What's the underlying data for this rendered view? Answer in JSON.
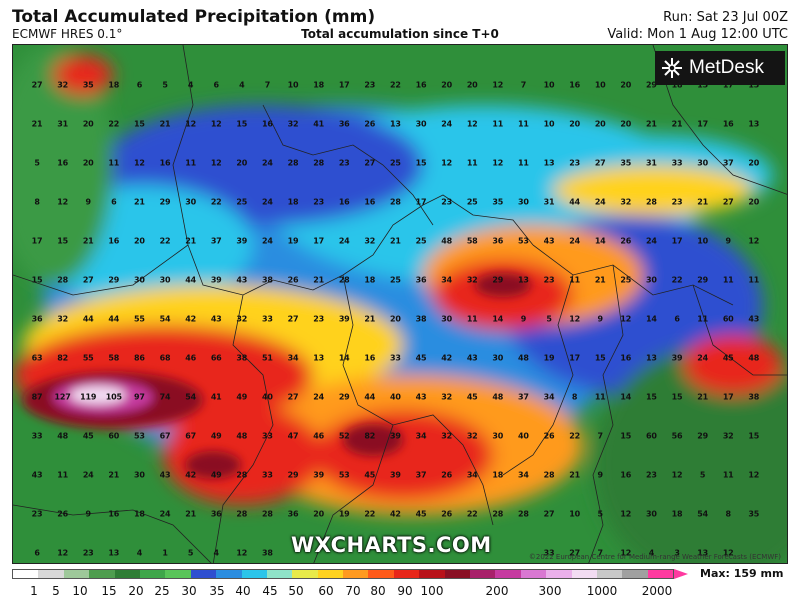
{
  "header": {
    "title": "Total Accumulated Precipitation (mm)",
    "model": "ECMWF HRES 0.1°",
    "subtitle": "Total accumulation since T+0",
    "run": "Run: Sat 23 Jul 00Z",
    "valid": "Valid: Mon 1 Aug 12:00 UTC"
  },
  "logo": {
    "name": "MetDesk"
  },
  "watermark": "WXCHARTS.COM",
  "copyright": "©2022 European Centre for Medium-range Weather Forecasts (ECMWF)",
  "legend": {
    "max_label": "Max: 159 mm",
    "tick_labels": [
      "1",
      "5",
      "10",
      "15",
      "20",
      "25",
      "30",
      "35",
      "40",
      "45",
      "50",
      "60",
      "70",
      "80",
      "90",
      "100",
      "200",
      "300",
      "1000",
      "2000"
    ],
    "colors": [
      "#ffffff",
      "#d8d8d8",
      "#9ec89a",
      "#4f9d4f",
      "#2f7d35",
      "#3fa64a",
      "#59c459",
      "#2f4fd0",
      "#2b8de0",
      "#2cc5ea",
      "#8fe3c8",
      "#e8ea4a",
      "#ffd21f",
      "#ff9a1f",
      "#ff5a1a",
      "#e8261a",
      "#b8121a",
      "#8a1024",
      "#a8206a",
      "#c63aa0",
      "#d978d2",
      "#eab0ea",
      "#f2dcf2",
      "#c8c8c8",
      "#a0a0a0",
      "#ff3aa0"
    ]
  },
  "values": [
    [
      "27",
      "32",
      "35",
      "18",
      "6",
      "5",
      "4",
      "6",
      "4",
      "7",
      "10",
      "18",
      "17",
      "23",
      "22",
      "16",
      "20",
      "20",
      "12",
      "7",
      "10",
      "16",
      "10",
      "20",
      "29",
      "18",
      "13",
      "17",
      "13"
    ],
    [
      "21",
      "31",
      "20",
      "22",
      "15",
      "21",
      "12",
      "12",
      "15",
      "16",
      "32",
      "41",
      "36",
      "26",
      "13",
      "30",
      "24",
      "12",
      "11",
      "11",
      "10",
      "20",
      "20",
      "20",
      "21",
      "21",
      "17",
      "16",
      "13"
    ],
    [
      "5",
      "16",
      "20",
      "11",
      "12",
      "16",
      "11",
      "12",
      "20",
      "24",
      "28",
      "28",
      "23",
      "27",
      "25",
      "15",
      "12",
      "11",
      "12",
      "11",
      "13",
      "23",
      "27",
      "35",
      "31",
      "33",
      "30",
      "37",
      "20"
    ],
    [
      "8",
      "12",
      "9",
      "6",
      "21",
      "29",
      "30",
      "22",
      "25",
      "24",
      "18",
      "23",
      "16",
      "16",
      "28",
      "17",
      "23",
      "25",
      "35",
      "30",
      "31",
      "44",
      "24",
      "32",
      "28",
      "23",
      "21",
      "27",
      "20"
    ],
    [
      "17",
      "15",
      "21",
      "16",
      "20",
      "22",
      "21",
      "37",
      "39",
      "24",
      "19",
      "17",
      "24",
      "32",
      "21",
      "25",
      "48",
      "58",
      "36",
      "53",
      "43",
      "24",
      "14",
      "26",
      "24",
      "17",
      "10",
      "9",
      "12"
    ],
    [
      "15",
      "28",
      "27",
      "29",
      "30",
      "30",
      "44",
      "39",
      "43",
      "38",
      "26",
      "21",
      "28",
      "18",
      "25",
      "36",
      "34",
      "32",
      "29",
      "13",
      "23",
      "11",
      "21",
      "25",
      "30",
      "22",
      "29",
      "11",
      "11"
    ],
    [
      "36",
      "32",
      "44",
      "44",
      "55",
      "54",
      "42",
      "43",
      "32",
      "33",
      "27",
      "23",
      "39",
      "21",
      "20",
      "38",
      "30",
      "11",
      "14",
      "9",
      "5",
      "12",
      "9",
      "12",
      "14",
      "6",
      "11",
      "60",
      "43"
    ],
    [
      "63",
      "82",
      "55",
      "58",
      "86",
      "68",
      "46",
      "66",
      "38",
      "51",
      "34",
      "13",
      "14",
      "16",
      "33",
      "45",
      "42",
      "43",
      "30",
      "48",
      "19",
      "17",
      "15",
      "16",
      "13",
      "39",
      "24",
      "45",
      "48"
    ],
    [
      "87",
      "127",
      "119",
      "105",
      "97",
      "74",
      "54",
      "41",
      "49",
      "40",
      "27",
      "24",
      "29",
      "44",
      "40",
      "43",
      "32",
      "45",
      "48",
      "37",
      "34",
      "8",
      "11",
      "14",
      "15",
      "15",
      "21",
      "17",
      "38"
    ],
    [
      "33",
      "48",
      "45",
      "60",
      "53",
      "67",
      "67",
      "49",
      "48",
      "33",
      "47",
      "46",
      "52",
      "82",
      "39",
      "34",
      "32",
      "32",
      "30",
      "40",
      "26",
      "22",
      "7",
      "15",
      "60",
      "56",
      "29",
      "32",
      "15"
    ],
    [
      "43",
      "11",
      "24",
      "21",
      "30",
      "43",
      "42",
      "49",
      "28",
      "33",
      "29",
      "39",
      "53",
      "45",
      "39",
      "37",
      "26",
      "34",
      "18",
      "34",
      "28",
      "21",
      "9",
      "16",
      "23",
      "12",
      "5",
      "11",
      "12"
    ],
    [
      "23",
      "26",
      "9",
      "16",
      "18",
      "24",
      "21",
      "36",
      "28",
      "28",
      "36",
      "20",
      "19",
      "22",
      "42",
      "45",
      "26",
      "22",
      "28",
      "28",
      "27",
      "10",
      "5",
      "12",
      "30",
      "18",
      "54",
      "8",
      "35"
    ],
    [
      "6",
      "12",
      "23",
      "13",
      "4",
      "1",
      "5",
      "4",
      "12",
      "38",
      "",
      "",
      "",
      "",
      "",
      "",
      "",
      "",
      "",
      "",
      "33",
      "27",
      "7",
      "12",
      "4",
      "3",
      "13",
      "12",
      ""
    ]
  ]
}
